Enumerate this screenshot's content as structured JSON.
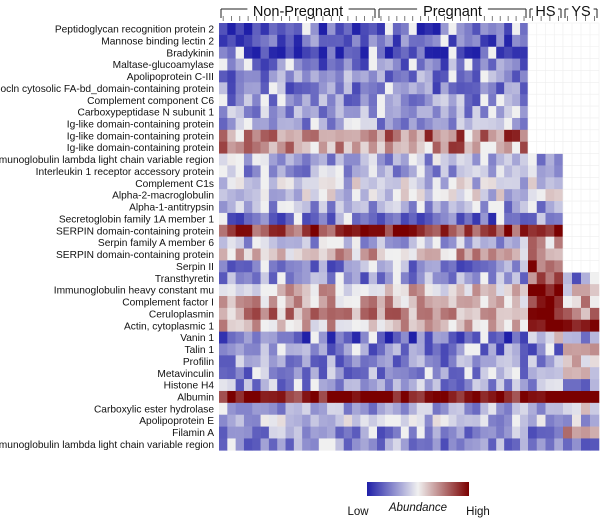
{
  "chart_data": {
    "type": "heatmap",
    "title": "",
    "groups": [
      {
        "name": "Non-Pregnant",
        "columns": 19
      },
      {
        "name": "Pregnant",
        "columns": 19
      },
      {
        "name": "HS",
        "columns": 4
      },
      {
        "name": "YS",
        "columns": 4
      }
    ],
    "rows": [
      "Peptidoglycan recognition protein 2",
      "Mannose binding lectin 2",
      "Bradykinin",
      "Maltase-glucoamylase",
      "Apolipoprotein C-III",
      "Lipocln cytosolic FA-bd_domain-containing protein",
      "Complement component C6",
      "Carboxypeptidase N subunit 1",
      "Ig-like domain-containing protein",
      "Ig-like domain-containing protein",
      "Ig-like domain-containing protein",
      "Immmunoglobulin lambda light chain variable region",
      "Interleukin 1 receptor accessory protein",
      "Complement C1s",
      "Alpha-2-macroglobulin",
      "Alpha-1-antitrypsin",
      "Secretoglobin family 1A member 1",
      "SERPIN domain-containing protein",
      "Serpin family A member 6",
      "SERPIN domain-containing protein",
      "Serpin II",
      "Transthyretin",
      "Immunoglobulin heavy constant mu",
      "Complement factor I",
      "Ceruloplasmin",
      "Actin, cytoplasmic 1",
      "Vanin 1",
      "Talin 1",
      "Profilin",
      "Metavinculin",
      "Histone H4",
      "Albumin",
      "Carboxylic ester hydrolase",
      "Apolipoprotein E",
      "Filamin A",
      "Immunoglobulin lambda light chain variable region"
    ],
    "row_mean": [
      -0.75,
      -0.65,
      -0.8,
      -0.55,
      -0.5,
      -0.5,
      -0.45,
      -0.4,
      -0.35,
      0.55,
      0.45,
      -0.3,
      -0.35,
      -0.15,
      -0.1,
      -0.35,
      -0.6,
      0.75,
      -0.3,
      0.25,
      -0.5,
      -0.45,
      0.15,
      0.25,
      0.4,
      0.2,
      -0.7,
      -0.5,
      -0.45,
      -0.45,
      -0.4,
      0.97,
      -0.35,
      -0.25,
      -0.45,
      -0.45
    ],
    "group_offsets": {
      "HS": {
        "Secretoglobin family 1A member 1": 0.2,
        "SERPIN domain-containing protein": 0.3,
        "Serpin family A member 6": 0.6,
        "Serpin II": 1.2,
        "Transthyretin": 1.0,
        "Immunoglobulin heavy constant mu": 0.9,
        "Complement factor I": 0.6,
        "Ceruloplasmin": 0.6,
        "Actin, cytoplasmic 1": 0.9,
        "Vanin 1": 0.7
      },
      "YS": {
        "Actin, cytoplasmic 1": 0.6,
        "Vanin 1": 0.4,
        "Talin 1": 0.6,
        "Profilin": 0.6,
        "Metavinculin": 0.5,
        "Carboxylic ester hydrolase": 0.4,
        "Filamin A": 0.9
      }
    },
    "absent_rows": {
      "HS": 11,
      "YS": 21
    },
    "missing_color": "#ffffff",
    "colormap": {
      "low": "#1f1fa8",
      "mid": "#f0f0f0",
      "high": "#7a0000"
    },
    "legend": {
      "title": "Abundance",
      "low": "Low",
      "high": "High"
    }
  }
}
